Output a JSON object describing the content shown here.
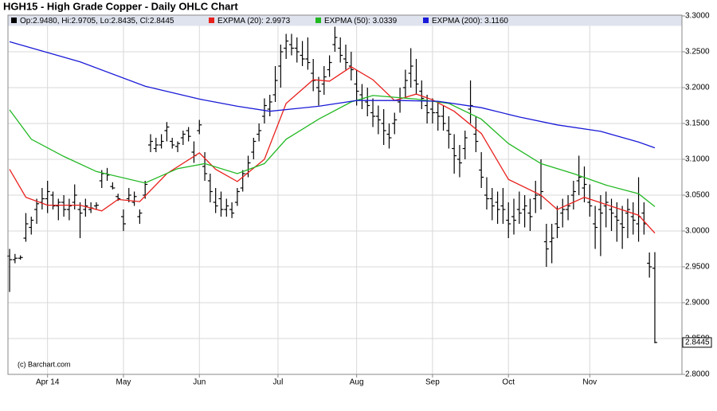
{
  "chart_data": {
    "type": "ohlc",
    "title": "HGH15 - High Grade Copper - Daily OHLC Chart",
    "credit": "(c) Barchart.com",
    "grid": true,
    "ylim": [
      2.8,
      3.3
    ],
    "yticks": [
      {
        "value": 2.8,
        "label": "2.8000"
      },
      {
        "value": 2.85,
        "label": "2.8500"
      },
      {
        "value": 2.9,
        "label": "2.9000"
      },
      {
        "value": 2.95,
        "label": "2.9500"
      },
      {
        "value": 3.0,
        "label": "3.0000"
      },
      {
        "value": 3.05,
        "label": "3.0500"
      },
      {
        "value": 3.1,
        "label": "3.1000"
      },
      {
        "value": 3.15,
        "label": "3.1500"
      },
      {
        "value": 3.2,
        "label": "3.2000"
      },
      {
        "value": 3.25,
        "label": "3.2500"
      },
      {
        "value": 3.3,
        "label": "3.3000"
      }
    ],
    "xlim": [
      -0.3,
      124
    ],
    "xticks": [
      {
        "value": 7,
        "label": "Apr 14"
      },
      {
        "value": 21,
        "label": "May"
      },
      {
        "value": 35,
        "label": "Jun"
      },
      {
        "value": 49.5,
        "label": "Jul"
      },
      {
        "value": 64,
        "label": "Aug"
      },
      {
        "value": 78,
        "label": "Sep"
      },
      {
        "value": 92,
        "label": "Oct"
      },
      {
        "value": 107,
        "label": "Nov"
      }
    ],
    "ohlc": {
      "name": "Op:2.9480, Hi:2.9705, Lo:2.8435, Cl:2.8445",
      "color": "#000000",
      "open": [
        2.965,
        2.96,
        2.962,
        2.99,
        3.005,
        3.03,
        3.04,
        3.045,
        3.05,
        3.035,
        3.04,
        3.03,
        3.04,
        3.03,
        3.03,
        3.03,
        3.035,
        3.07,
        3.08,
        3.062,
        3.048,
        3.02,
        3.045,
        3.04,
        3.02,
        3.05,
        3.12,
        3.115,
        3.12,
        3.14,
        3.125,
        3.118,
        3.13,
        3.14,
        3.11,
        3.14,
        3.09,
        3.07,
        3.04,
        3.045,
        3.03,
        3.03,
        3.04,
        3.06,
        3.08,
        3.11,
        3.135,
        3.16,
        3.17,
        3.19,
        3.23,
        3.255,
        3.26,
        3.255,
        3.245,
        3.24,
        3.22,
        3.2,
        3.205,
        3.225,
        3.26,
        3.255,
        3.24,
        3.23,
        3.205,
        3.19,
        3.18,
        3.165,
        3.16,
        3.15,
        3.135,
        3.15,
        3.18,
        3.2,
        3.22,
        3.21,
        3.195,
        3.175,
        3.17,
        3.165,
        3.16,
        3.14,
        3.115,
        3.1,
        3.115,
        3.17,
        3.135,
        3.085,
        3.05,
        3.045,
        3.04,
        3.035,
        3.015,
        3.02,
        3.03,
        3.03,
        3.025,
        3.045,
        3.05,
        2.985,
        2.985,
        3.01,
        3.025,
        3.03,
        3.05,
        3.07,
        3.06,
        3.04,
        3.01,
        3.03,
        3.035,
        3.03,
        3.02,
        3.01,
        3.025,
        3.02,
        3.01,
        3.025,
        2.955,
        2.948
      ],
      "high": [
        2.975,
        2.968,
        2.966,
        3.025,
        3.02,
        3.045,
        3.06,
        3.07,
        3.055,
        3.045,
        3.05,
        3.045,
        3.065,
        3.04,
        3.045,
        3.04,
        3.04,
        3.085,
        3.088,
        3.068,
        3.052,
        3.03,
        3.06,
        3.055,
        3.03,
        3.07,
        3.135,
        3.13,
        3.135,
        3.152,
        3.13,
        3.125,
        3.14,
        3.145,
        3.125,
        3.155,
        3.11,
        3.08,
        3.06,
        3.055,
        3.045,
        3.04,
        3.06,
        3.085,
        3.105,
        3.13,
        3.15,
        3.185,
        3.19,
        3.23,
        3.26,
        3.275,
        3.275,
        3.27,
        3.265,
        3.27,
        3.24,
        3.215,
        3.23,
        3.245,
        3.285,
        3.27,
        3.26,
        3.25,
        3.225,
        3.205,
        3.2,
        3.185,
        3.175,
        3.17,
        3.15,
        3.165,
        3.2,
        3.225,
        3.255,
        3.24,
        3.21,
        3.19,
        3.185,
        3.18,
        3.175,
        3.16,
        3.135,
        3.12,
        3.14,
        3.21,
        3.16,
        3.11,
        3.075,
        3.06,
        3.055,
        3.06,
        3.04,
        3.045,
        3.055,
        3.05,
        3.045,
        3.07,
        3.1,
        3.01,
        3.01,
        3.035,
        3.045,
        3.05,
        3.07,
        3.105,
        3.09,
        3.065,
        3.035,
        3.05,
        3.055,
        3.045,
        3.04,
        3.035,
        3.045,
        3.04,
        3.075,
        3.04,
        2.97,
        2.9705
      ],
      "low": [
        2.915,
        2.955,
        2.96,
        2.985,
        2.995,
        3.01,
        3.03,
        3.025,
        3.03,
        3.015,
        3.02,
        3.015,
        3.03,
        2.99,
        3.02,
        3.025,
        3.03,
        3.06,
        3.07,
        3.058,
        3.042,
        3.0,
        3.04,
        3.035,
        3.01,
        3.045,
        3.11,
        3.11,
        3.115,
        3.125,
        3.115,
        3.11,
        3.12,
        3.125,
        3.095,
        3.135,
        3.07,
        3.04,
        3.025,
        3.02,
        3.02,
        3.018,
        3.035,
        3.055,
        3.075,
        3.1,
        3.125,
        3.15,
        3.16,
        3.18,
        3.2,
        3.24,
        3.245,
        3.235,
        3.23,
        3.225,
        3.195,
        3.175,
        3.19,
        3.215,
        3.25,
        3.235,
        3.225,
        3.21,
        3.175,
        3.17,
        3.16,
        3.145,
        3.135,
        3.12,
        3.115,
        3.135,
        3.165,
        3.185,
        3.2,
        3.19,
        3.17,
        3.15,
        3.15,
        3.14,
        3.14,
        3.115,
        3.08,
        3.075,
        3.1,
        3.15,
        3.11,
        3.06,
        3.03,
        3.015,
        3.01,
        3.01,
        2.99,
        2.995,
        3.01,
        3.005,
        3.0,
        3.025,
        3.03,
        2.95,
        2.955,
        2.99,
        3.005,
        3.015,
        3.03,
        3.05,
        3.04,
        3.02,
        2.975,
        2.965,
        3.005,
        3.0,
        2.985,
        2.975,
        2.99,
        2.995,
        2.985,
        2.995,
        2.935,
        2.8435
      ],
      "close": [
        2.96,
        2.962,
        2.963,
        3.01,
        3.015,
        3.038,
        3.045,
        3.055,
        3.035,
        3.04,
        3.03,
        3.035,
        3.05,
        3.025,
        3.035,
        3.032,
        3.036,
        3.08,
        3.078,
        3.06,
        3.045,
        3.01,
        3.05,
        3.048,
        3.025,
        3.065,
        3.125,
        3.12,
        3.125,
        3.145,
        3.12,
        3.122,
        3.135,
        3.132,
        3.105,
        3.148,
        3.08,
        3.055,
        3.035,
        3.03,
        3.035,
        3.025,
        3.055,
        3.08,
        3.095,
        3.125,
        3.14,
        3.175,
        3.18,
        3.21,
        3.25,
        3.265,
        3.255,
        3.25,
        3.24,
        3.235,
        3.21,
        3.195,
        3.215,
        3.235,
        3.27,
        3.245,
        3.235,
        3.225,
        3.195,
        3.185,
        3.175,
        3.16,
        3.155,
        3.14,
        3.13,
        3.155,
        3.185,
        3.21,
        3.23,
        3.205,
        3.185,
        3.165,
        3.165,
        3.16,
        3.15,
        3.135,
        3.105,
        3.095,
        3.13,
        3.175,
        3.125,
        3.075,
        3.045,
        3.035,
        3.03,
        3.03,
        3.01,
        3.015,
        3.025,
        3.035,
        3.02,
        3.05,
        3.055,
        2.975,
        2.99,
        3.005,
        3.03,
        3.035,
        3.055,
        3.075,
        3.065,
        3.035,
        3.005,
        3.025,
        3.04,
        3.025,
        3.015,
        3.005,
        3.03,
        3.015,
        3.02,
        3.01,
        2.95,
        2.8445
      ]
    },
    "series": [
      {
        "name": "EXPMA (20): 2.9973",
        "color": "#e8201c",
        "x": [
          0,
          3,
          7,
          13,
          17,
          20,
          24,
          29,
          35,
          38,
          42,
          47,
          51,
          56,
          59,
          63,
          67,
          71,
          75,
          78,
          82,
          87,
          92,
          98,
          101,
          106,
          110,
          116,
          119
        ],
        "values": [
          3.086,
          3.047,
          3.036,
          3.036,
          3.028,
          3.044,
          3.041,
          3.08,
          3.109,
          3.086,
          3.069,
          3.1,
          3.178,
          3.211,
          3.209,
          3.229,
          3.211,
          3.182,
          3.191,
          3.183,
          3.167,
          3.136,
          3.072,
          3.05,
          3.03,
          3.047,
          3.037,
          3.022,
          2.997
        ]
      },
      {
        "name": "EXPMA (50): 3.0339",
        "color": "#22b822",
        "x": [
          0,
          4,
          10,
          16,
          25,
          31,
          36,
          42,
          47,
          51,
          57,
          63,
          67,
          75,
          81,
          87,
          92,
          98,
          104,
          110,
          116,
          119
        ],
        "values": [
          3.169,
          3.128,
          3.104,
          3.083,
          3.067,
          3.087,
          3.094,
          3.08,
          3.094,
          3.128,
          3.156,
          3.18,
          3.189,
          3.184,
          3.178,
          3.156,
          3.122,
          3.094,
          3.08,
          3.064,
          3.052,
          3.034
        ]
      },
      {
        "name": "EXPMA (200): 3.1160",
        "color": "#1a1ad8",
        "x": [
          0,
          13,
          25,
          35,
          42,
          48,
          57,
          64,
          72,
          79,
          87,
          94,
          101,
          109,
          116,
          119
        ],
        "values": [
          3.264,
          3.236,
          3.202,
          3.184,
          3.174,
          3.167,
          3.174,
          3.182,
          3.182,
          3.181,
          3.172,
          3.159,
          3.148,
          3.139,
          3.124,
          3.116
        ]
      }
    ]
  }
}
